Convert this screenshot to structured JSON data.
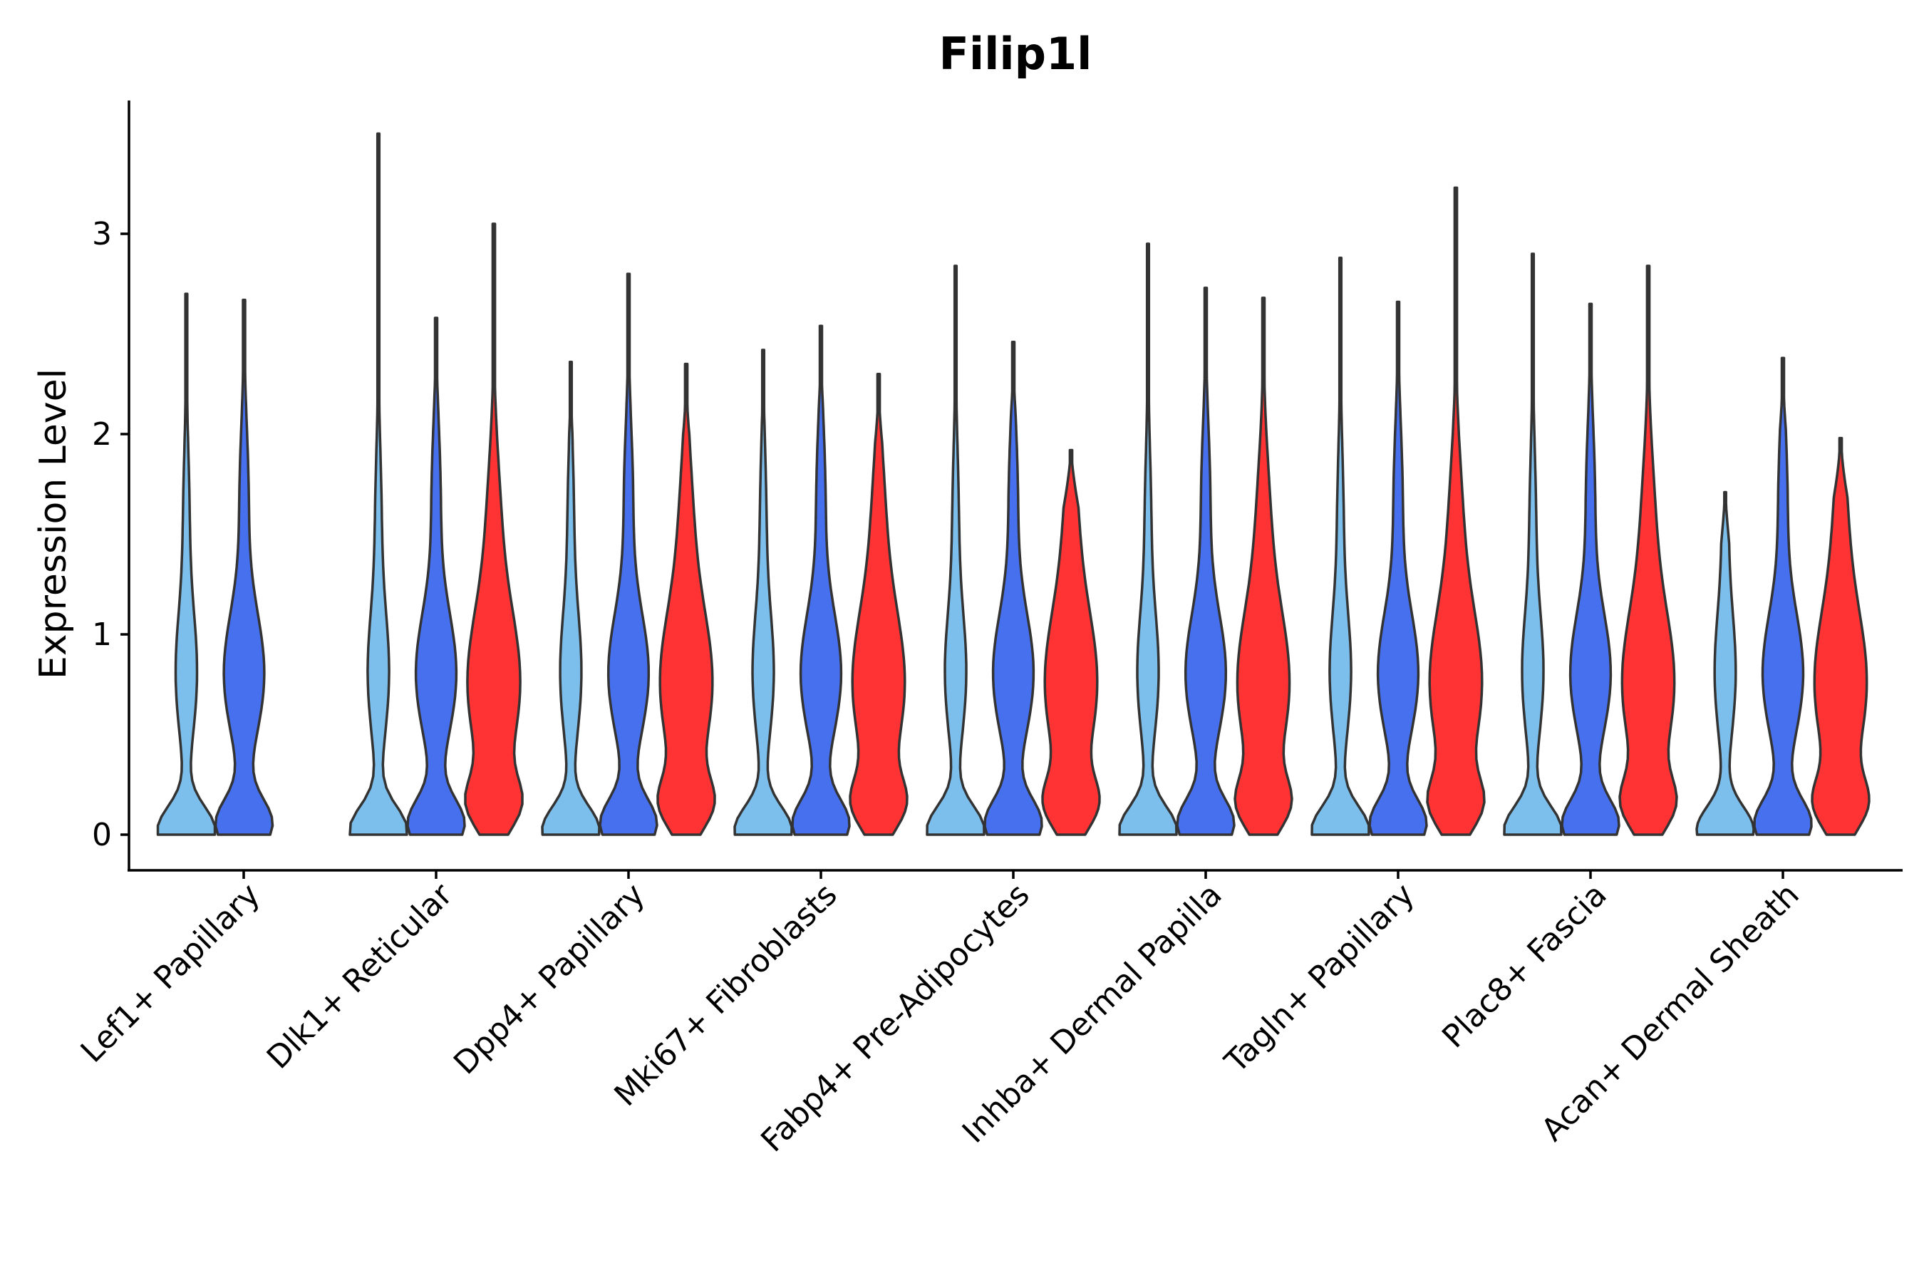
{
  "chart_data": {
    "type": "violin",
    "title": "Filip1l",
    "xlabel": "",
    "ylabel": "Expression Level",
    "ylim": [
      -0.18,
      3.7
    ],
    "yticks": [
      0,
      1,
      2,
      3
    ],
    "ytick_labels": [
      "0",
      "1",
      "2",
      "3"
    ],
    "categories": [
      "Lef1+ Papillary",
      "Dlk1+ Reticular",
      "Dpp4+ Papillary",
      "Mki67+ Fibroblasts",
      "Fabp4+ Pre-Adipocytes",
      "Inhba+ Dermal Papilla",
      "Tagln+ Papillary",
      "Plac8+ Fascia",
      "Acan+ Dermal Sheath"
    ],
    "colors": {
      "light_blue": "#7DBFEC",
      "blue": "#4770EE",
      "red": "#FF3333",
      "outline": "#333333"
    },
    "groups": [
      {
        "category": "Lef1+ Papillary",
        "violins": [
          {
            "color": "light_blue",
            "max": 2.7
          },
          {
            "color": "blue",
            "max": 2.67
          }
        ]
      },
      {
        "category": "Dlk1+ Reticular",
        "violins": [
          {
            "color": "light_blue",
            "max": 3.5
          },
          {
            "color": "blue",
            "max": 2.58
          },
          {
            "color": "red",
            "max": 3.05
          }
        ]
      },
      {
        "category": "Dpp4+ Papillary",
        "violins": [
          {
            "color": "light_blue",
            "max": 2.36
          },
          {
            "color": "blue",
            "max": 2.8
          },
          {
            "color": "red",
            "max": 2.35
          }
        ]
      },
      {
        "category": "Mki67+ Fibroblasts",
        "violins": [
          {
            "color": "light_blue",
            "max": 2.42
          },
          {
            "color": "blue",
            "max": 2.54
          },
          {
            "color": "red",
            "max": 2.3
          }
        ]
      },
      {
        "category": "Fabp4+ Pre-Adipocytes",
        "violins": [
          {
            "color": "light_blue",
            "max": 2.84
          },
          {
            "color": "blue",
            "max": 2.46
          },
          {
            "color": "red",
            "max": 1.92
          }
        ]
      },
      {
        "category": "Inhba+ Dermal Papilla",
        "violins": [
          {
            "color": "light_blue",
            "max": 2.95
          },
          {
            "color": "blue",
            "max": 2.73
          },
          {
            "color": "red",
            "max": 2.68
          }
        ]
      },
      {
        "category": "Tagln+ Papillary",
        "violins": [
          {
            "color": "light_blue",
            "max": 2.88
          },
          {
            "color": "blue",
            "max": 2.66
          },
          {
            "color": "red",
            "max": 3.23
          }
        ]
      },
      {
        "category": "Plac8+ Fascia",
        "violins": [
          {
            "color": "light_blue",
            "max": 2.9
          },
          {
            "color": "blue",
            "max": 2.65
          },
          {
            "color": "red",
            "max": 2.84
          }
        ]
      },
      {
        "category": "Acan+ Dermal Sheath",
        "violins": [
          {
            "color": "light_blue",
            "max": 1.71
          },
          {
            "color": "blue",
            "max": 2.38
          },
          {
            "color": "red",
            "max": 1.98
          }
        ]
      }
    ]
  }
}
